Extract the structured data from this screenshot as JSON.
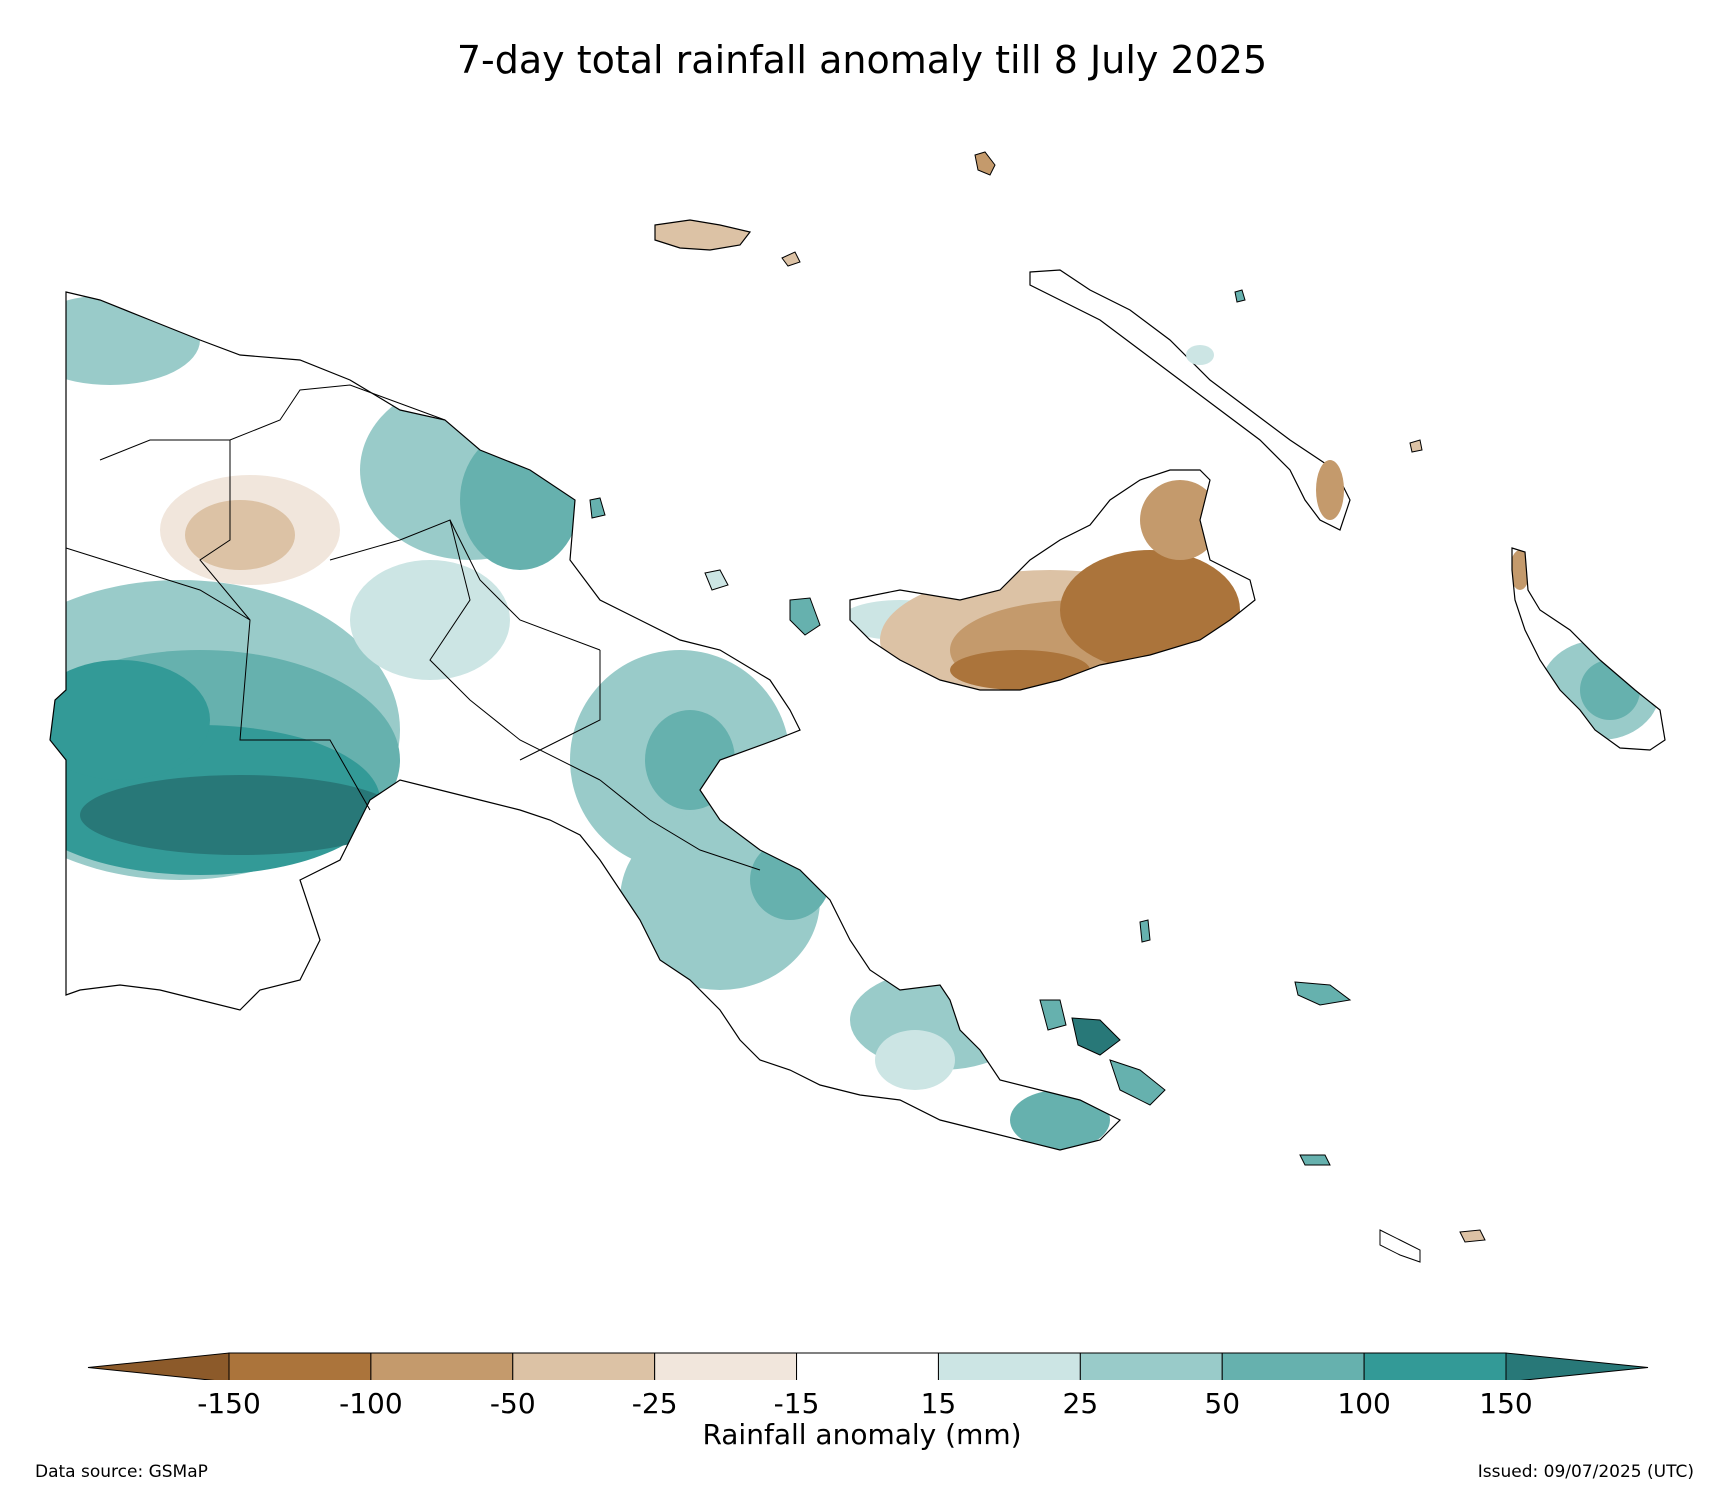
{
  "title": "7-day total rainfall anomaly till 8 July 2025",
  "colorbar": {
    "label": "Rainfall anomaly (mm)",
    "ticks": [
      "-150",
      "-100",
      "-50",
      "-25",
      "-15",
      "15",
      "25",
      "50",
      "100",
      "150"
    ],
    "bins": [
      {
        "range": "< -150",
        "color": "#8c5a2a"
      },
      {
        "range": "-150 to -100",
        "color": "#ab743b"
      },
      {
        "range": "-100 to -50",
        "color": "#c49a6c"
      },
      {
        "range": "-50 to -25",
        "color": "#dcc2a5"
      },
      {
        "range": "-25 to -15",
        "color": "#f1e6dc"
      },
      {
        "range": "-15 to 15",
        "color": "#ffffff"
      },
      {
        "range": "15 to 25",
        "color": "#cce5e4"
      },
      {
        "range": "25 to 50",
        "color": "#99cbc9"
      },
      {
        "range": "50 to 100",
        "color": "#66b1ae"
      },
      {
        "range": "100 to 150",
        "color": "#339a97"
      },
      {
        "range": "> 150",
        "color": "#287878"
      }
    ]
  },
  "footer": {
    "source": "Data source: GSMaP",
    "issued": "Issued: 09/07/2025 (UTC)"
  }
}
